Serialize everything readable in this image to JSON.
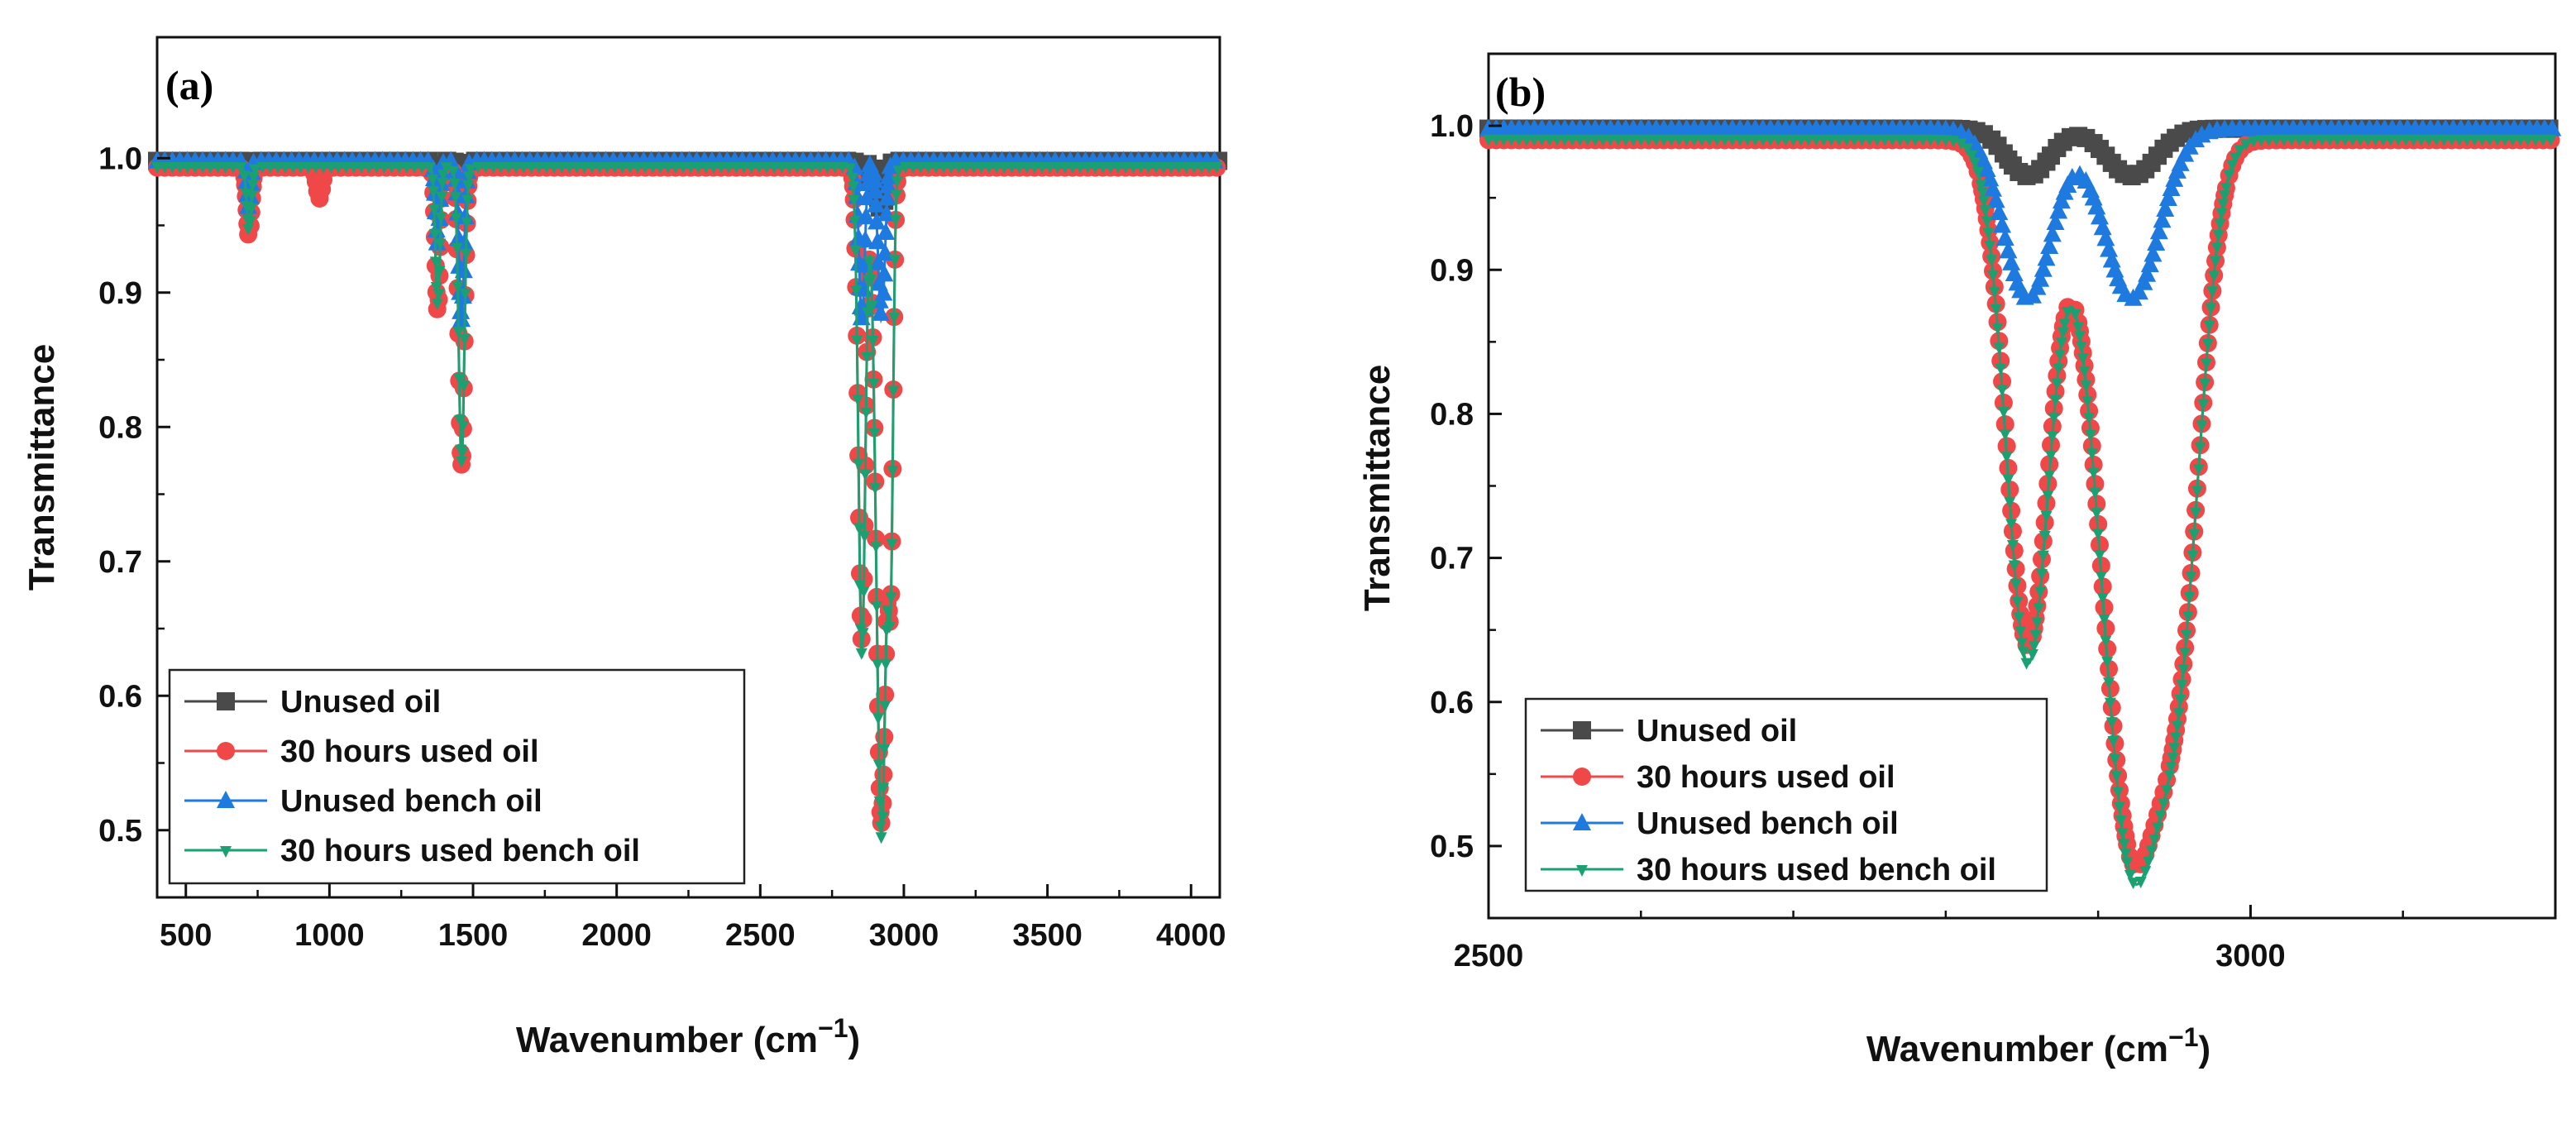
{
  "chart_data": [
    {
      "type": "line",
      "panel_label": "(a)",
      "xlabel": "Wavenumber (cm",
      "xlabel_sup": "−1",
      "xlabel_close": ")",
      "ylabel": "Transmittance",
      "xlim": [
        400,
        4100
      ],
      "ylim": [
        0.45,
        1.09
      ],
      "xticks": [
        500,
        1000,
        1500,
        2000,
        2500,
        3000,
        3500,
        4000
      ],
      "yticks": [
        0.5,
        0.6,
        0.7,
        0.8,
        0.9,
        1.0
      ],
      "ytick_labels": [
        "0.5",
        "0.6",
        "0.7",
        "0.8",
        "0.9",
        "1.0"
      ],
      "legend_position": "bottom-left",
      "series": [
        {
          "name": "Unused oil",
          "color": "#4a4a4a",
          "marker": "square",
          "baseline": 0.998,
          "dips": [
            [
              720,
              0.985,
              6
            ],
            [
              1377,
              0.985,
              7
            ],
            [
              1460,
              0.975,
              9
            ],
            [
              2854,
              0.982,
              10
            ],
            [
              2922,
              0.96,
              14
            ]
          ]
        },
        {
          "name": "30 hours used oil",
          "color": "#f04848",
          "marker": "circle",
          "baseline": 0.993,
          "dips": [
            [
              720,
              0.94,
              8
            ],
            [
              965,
              0.97,
              10
            ],
            [
              1377,
              0.885,
              8
            ],
            [
              1460,
              0.772,
              10
            ],
            [
              2854,
              0.64,
              12
            ],
            [
              2922,
              0.505,
              18
            ],
            [
              2955,
              0.76,
              8
            ]
          ]
        },
        {
          "name": "Unused bench oil",
          "color": "#1f7ae0",
          "marker": "triangle",
          "baseline": 0.998,
          "dips": [
            [
              720,
              0.96,
              6
            ],
            [
              1377,
              0.935,
              7
            ],
            [
              1460,
              0.88,
              9
            ],
            [
              2854,
              0.88,
              10
            ],
            [
              2922,
              0.88,
              12
            ]
          ]
        },
        {
          "name": "30 hours used bench oil",
          "color": "#1aa071",
          "marker": "triangle-down",
          "baseline": 0.994,
          "dips": [
            [
              720,
              0.945,
              8
            ],
            [
              1377,
              0.89,
              8
            ],
            [
              1460,
              0.775,
              10
            ],
            [
              2854,
              0.63,
              12
            ],
            [
              2922,
              0.495,
              18
            ],
            [
              2955,
              0.76,
              8
            ]
          ]
        }
      ]
    },
    {
      "type": "line",
      "panel_label": "(b)",
      "xlabel": "Wavenumber (cm",
      "xlabel_sup": "−1",
      "xlabel_close": ")",
      "ylabel": "Transmittance",
      "xlim": [
        2500,
        3200
      ],
      "ylim": [
        0.45,
        1.05
      ],
      "xticks": [
        2500,
        3000
      ],
      "yticks": [
        0.5,
        0.6,
        0.7,
        0.8,
        0.9,
        1.0
      ],
      "ytick_labels": [
        "0.5",
        "0.6",
        "0.7",
        "0.8",
        "0.9",
        "1.0"
      ],
      "legend_position": "bottom-left",
      "series": [
        {
          "name": "Unused oil",
          "color": "#4a4a4a",
          "marker": "square",
          "baseline": 0.998,
          "dips": [
            [
              2854,
              0.965,
              14
            ],
            [
              2922,
              0.965,
              16
            ]
          ]
        },
        {
          "name": "30 hours used oil",
          "color": "#f04848",
          "marker": "circle",
          "baseline": 0.99,
          "dips": [
            [
              2854,
              0.64,
              14
            ],
            [
              2922,
              0.505,
              20
            ],
            [
              2955,
              0.74,
              14
            ]
          ]
        },
        {
          "name": "Unused bench oil",
          "color": "#1f7ae0",
          "marker": "triangle",
          "baseline": 0.998,
          "dips": [
            [
              2854,
              0.88,
              16
            ],
            [
              2922,
              0.88,
              18
            ]
          ]
        },
        {
          "name": "30 hours used bench oil",
          "color": "#1aa071",
          "marker": "triangle-down",
          "baseline": 0.991,
          "dips": [
            [
              2854,
              0.628,
              14
            ],
            [
              2922,
              0.493,
              20
            ],
            [
              2955,
              0.74,
              14
            ]
          ]
        }
      ]
    }
  ]
}
